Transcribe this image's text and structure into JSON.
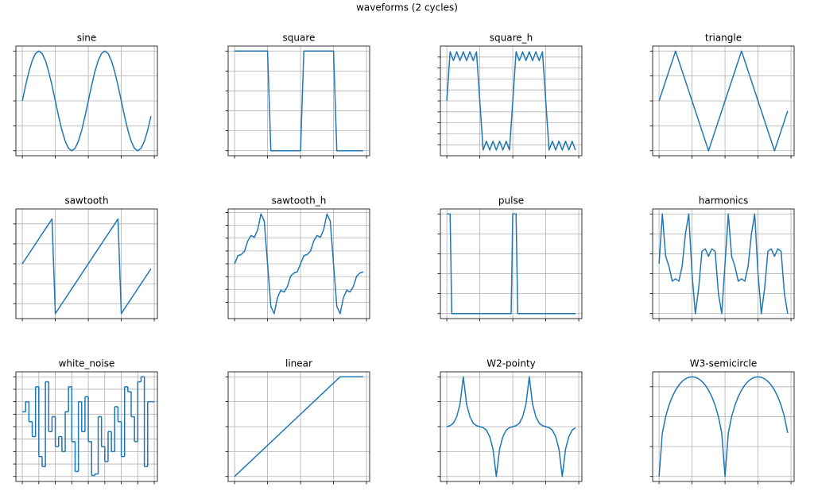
{
  "title": "waveforms (2 cycles)",
  "chart_data": [
    {
      "type": "line",
      "title": "sine",
      "color": "#1f77b4",
      "grid": true,
      "x": [
        0,
        0.05,
        0.1,
        0.15,
        0.2,
        0.25,
        0.3,
        0.35,
        0.4,
        0.45,
        0.5,
        0.55,
        0.6,
        0.65,
        0.7,
        0.75,
        0.8,
        0.85,
        0.9,
        0.95,
        1,
        1.05,
        1.1,
        1.15,
        1.2,
        1.25,
        1.3,
        1.35,
        1.4,
        1.45,
        1.5,
        1.55,
        1.6,
        1.65,
        1.7,
        1.75,
        1.8,
        1.85,
        1.9,
        1.95
      ],
      "values": [
        0,
        0.309,
        0.588,
        0.809,
        0.951,
        1,
        0.951,
        0.809,
        0.588,
        0.309,
        0,
        -0.309,
        -0.588,
        -0.809,
        -0.951,
        -1,
        -0.951,
        -0.809,
        -0.588,
        -0.309,
        0,
        0.309,
        0.588,
        0.809,
        0.951,
        1,
        0.951,
        0.809,
        0.588,
        0.309,
        0,
        -0.309,
        -0.588,
        -0.809,
        -0.951,
        -1,
        -0.951,
        -0.809,
        -0.588,
        -0.309
      ],
      "xlim": [
        -0.0975,
        2.0475
      ],
      "ylim": [
        -1.1,
        1.1
      ],
      "xticks": [
        0,
        0.5,
        1,
        1.5,
        2
      ],
      "yticks": [
        -1,
        -0.5,
        0,
        0.5,
        1
      ]
    },
    {
      "type": "line",
      "title": "square",
      "color": "#1f77b4",
      "grid": true,
      "x": [
        0,
        0.5,
        0.55,
        1,
        1.05,
        1.5,
        1.55,
        1.95
      ],
      "values": [
        1,
        1,
        -1,
        -1,
        1,
        1,
        -1,
        -1
      ],
      "xlim": [
        -0.0975,
        2.0475
      ],
      "ylim": [
        -1.1,
        1.1
      ],
      "xticks": [
        0,
        0.5,
        1,
        1.5,
        2
      ],
      "yticks": [
        -1,
        -0.6,
        -0.2,
        0.2,
        0.6,
        1
      ]
    },
    {
      "type": "line",
      "title": "square_h",
      "color": "#1f77b4",
      "grid": true,
      "x": [
        0,
        0.05,
        0.1,
        0.15,
        0.2,
        0.25,
        0.3,
        0.35,
        0.4,
        0.45,
        0.5,
        0.55,
        0.6,
        0.65,
        0.7,
        0.75,
        0.8,
        0.85,
        0.9,
        0.95,
        1,
        1.05,
        1.1,
        1.15,
        1.2,
        1.25,
        1.3,
        1.35,
        1.4,
        1.45,
        1.5,
        1.55,
        1.6,
        1.65,
        1.7,
        1.75,
        1.8,
        1.85,
        1.9,
        1.95
      ],
      "values": [
        0,
        1.12,
        0.92,
        1.12,
        0.92,
        1.12,
        0.92,
        1.12,
        0.92,
        1.12,
        0,
        -1.12,
        -0.92,
        -1.12,
        -0.92,
        -1.12,
        -0.92,
        -1.12,
        -0.92,
        -1.12,
        0,
        1.12,
        0.92,
        1.12,
        0.92,
        1.12,
        0.92,
        1.12,
        0.92,
        1.12,
        0,
        -1.12,
        -0.92,
        -1.12,
        -0.92,
        -1.12,
        -0.92,
        -1.12,
        -0.92,
        -1.12
      ],
      "xlim": [
        -0.0975,
        2.0475
      ],
      "ylim": [
        -1.25,
        1.25
      ],
      "xticks": [
        0,
        0.5,
        1,
        1.5,
        2
      ],
      "yticks": [
        -1,
        -0.75,
        -0.5,
        -0.25,
        0,
        0.25,
        0.5,
        0.75,
        1
      ]
    },
    {
      "type": "line",
      "title": "triangle",
      "color": "#1f77b4",
      "grid": true,
      "x": [
        0,
        0.25,
        0.75,
        1.25,
        1.75,
        1.95
      ],
      "values": [
        0,
        1,
        -1,
        1,
        -1,
        -0.2
      ],
      "xlim": [
        -0.0975,
        2.0475
      ],
      "ylim": [
        -1.1,
        1.1
      ],
      "xticks": [
        0,
        0.5,
        1,
        1.5,
        2
      ],
      "yticks": [
        -1,
        -0.5,
        0,
        0.5,
        1
      ]
    },
    {
      "type": "line",
      "title": "sawtooth",
      "color": "#1f77b4",
      "grid": true,
      "x": [
        0,
        0.45,
        0.5,
        1.45,
        1.5,
        1.95
      ],
      "values": [
        0,
        0.9,
        -1,
        0.9,
        -1,
        -0.1
      ],
      "xlim": [
        -0.0975,
        2.0475
      ],
      "ylim": [
        -1.1,
        1.1
      ],
      "xticks": [
        0,
        0.5,
        1,
        1.5,
        2
      ],
      "yticks": [
        -0.8,
        -0.4,
        0,
        0.4,
        0.8
      ]
    },
    {
      "type": "line",
      "title": "sawtooth_h",
      "color": "#1f77b4",
      "grid": true,
      "x": [
        0,
        0.05,
        0.1,
        0.15,
        0.2,
        0.25,
        0.3,
        0.35,
        0.4,
        0.45,
        0.5,
        0.55,
        0.6,
        0.65,
        0.7,
        0.75,
        0.8,
        0.85,
        0.9,
        0.95,
        1,
        1.05,
        1.1,
        1.15,
        1.2,
        1.25,
        1.3,
        1.35,
        1.4,
        1.45,
        1.5,
        1.55,
        1.6,
        1.65,
        1.7,
        1.75,
        1.8,
        1.85,
        1.9,
        1.95
      ],
      "values": [
        0,
        0.157,
        0.18,
        0.244,
        0.445,
        0.552,
        0.517,
        0.663,
        0.973,
        0.835,
        0,
        -0.835,
        -0.973,
        -0.663,
        -0.517,
        -0.552,
        -0.445,
        -0.244,
        -0.18,
        -0.157,
        0,
        0.157,
        0.18,
        0.244,
        0.445,
        0.552,
        0.517,
        0.663,
        0.973,
        0.835,
        0,
        -0.835,
        -0.973,
        -0.663,
        -0.517,
        -0.552,
        -0.445,
        -0.244,
        -0.18,
        -0.157
      ],
      "xlim": [
        -0.0975,
        2.0475
      ],
      "ylim": [
        -1.07,
        1.07
      ],
      "xticks": [
        0,
        0.5,
        1,
        1.5,
        2
      ],
      "yticks": [
        -0.75,
        -0.5,
        -0.25,
        0,
        0.25,
        0.5,
        0.75,
        1
      ]
    },
    {
      "type": "line",
      "title": "pulse",
      "color": "#1f77b4",
      "grid": true,
      "x": [
        0,
        0.05,
        0.075,
        0.975,
        1,
        1.05,
        1.075,
        1.95
      ],
      "values": [
        1,
        1,
        0,
        0,
        1,
        1,
        0,
        0
      ],
      "xlim": [
        -0.0975,
        2.0475
      ],
      "ylim": [
        -0.05,
        1.05
      ],
      "xticks": [
        0,
        0.5,
        1,
        1.5,
        2
      ],
      "yticks": [
        0,
        0.2,
        0.4,
        0.6,
        0.8,
        1
      ]
    },
    {
      "type": "line",
      "title": "harmonics",
      "color": "#1f77b4",
      "grid": true,
      "x": [
        0,
        0.05,
        0.1,
        0.15,
        0.2,
        0.25,
        0.3,
        0.35,
        0.4,
        0.45,
        0.5,
        0.55,
        0.6,
        0.65,
        0.7,
        0.75,
        0.8,
        0.85,
        0.9,
        0.95,
        1,
        1.05,
        1.1,
        1.15,
        1.2,
        1.25,
        1.3,
        1.35,
        1.4,
        1.45,
        1.5,
        1.55,
        1.6,
        1.65,
        1.7,
        1.75,
        1.8,
        1.85,
        1.9,
        1.95
      ],
      "values": [
        0,
        1,
        0.15,
        -0.05,
        -0.35,
        -0.3,
        -0.35,
        -0.05,
        0.6,
        1,
        -0.2,
        -1,
        -0.5,
        0.25,
        0.3,
        0.15,
        0.3,
        0.25,
        -0.6,
        -1,
        0,
        1,
        0.15,
        -0.05,
        -0.35,
        -0.3,
        -0.35,
        -0.05,
        0.6,
        1,
        -0.2,
        -1,
        -0.5,
        0.25,
        0.3,
        0.15,
        0.3,
        0.25,
        -0.6,
        -1
      ],
      "xlim": [
        -0.0975,
        2.0475
      ],
      "ylim": [
        -1.1,
        1.1
      ],
      "xticks": [
        0,
        0.5,
        1,
        1.5,
        2
      ],
      "yticks": [
        -1,
        -0.6,
        -0.2,
        0.2,
        0.6,
        1
      ]
    },
    {
      "type": "line",
      "title": "white_noise",
      "color": "#1f77b4",
      "grid": true,
      "drawstyle": "steps",
      "x": [
        0,
        0.05,
        0.1,
        0.15,
        0.2,
        0.25,
        0.3,
        0.35,
        0.4,
        0.45,
        0.5,
        0.55,
        0.6,
        0.65,
        0.7,
        0.75,
        0.8,
        0.85,
        0.9,
        0.95,
        1,
        1.05,
        1.1,
        1.15,
        1.2,
        1.25,
        1.3,
        1.35,
        1.4,
        1.45,
        1.5,
        1.55,
        1.6,
        1.65,
        1.7,
        1.75,
        1.8,
        1.85,
        1.9,
        1.95
      ],
      "values": [
        0.3,
        0.5,
        0.1,
        -0.2,
        0.8,
        -0.6,
        -0.8,
        0.9,
        -0.1,
        0.2,
        -0.4,
        -0.2,
        -0.5,
        0.3,
        0.8,
        -0.3,
        -0.9,
        0.5,
        -0.1,
        0.6,
        -0.3,
        -0.98,
        -0.95,
        0.2,
        -0.4,
        -0.7,
        -0.1,
        -0.5,
        0.4,
        0.1,
        -0.6,
        0.8,
        0.7,
        0.2,
        -0.3,
        0.9,
        1,
        -0.8,
        0.5,
        0.5
      ],
      "xlim": [
        -0.0975,
        2.0475
      ],
      "ylim": [
        -1.1,
        1.1
      ],
      "xticks": [
        0,
        0.25,
        0.5,
        0.75,
        1,
        1.25,
        1.5,
        1.75,
        2
      ],
      "yticks": [
        -1,
        -0.75,
        -0.5,
        -0.25,
        0,
        0.25,
        0.5,
        0.75,
        1
      ]
    },
    {
      "type": "line",
      "title": "linear",
      "color": "#1f77b4",
      "grid": true,
      "x": [
        0,
        1.6,
        1.95
      ],
      "values": [
        0,
        1,
        1
      ],
      "xlim": [
        -0.0975,
        2.0475
      ],
      "ylim": [
        -0.05,
        1.05
      ],
      "xticks": [
        0,
        0.5,
        1,
        1.5,
        2
      ],
      "yticks": [
        0,
        0.25,
        0.5,
        0.75,
        1
      ]
    },
    {
      "type": "line",
      "title": "W2-pointy",
      "color": "#1f77b4",
      "grid": true,
      "x": [
        0,
        0.05,
        0.1,
        0.15,
        0.2,
        0.25,
        0.3,
        0.35,
        0.4,
        0.45,
        0.5,
        0.55,
        0.6,
        0.65,
        0.7,
        0.75,
        0.8,
        0.85,
        0.9,
        0.95,
        1,
        1.05,
        1.1,
        1.15,
        1.2,
        1.25,
        1.3,
        1.35,
        1.4,
        1.45,
        1.5,
        1.55,
        1.6,
        1.65,
        1.7,
        1.75,
        1.8,
        1.85,
        1.9,
        1.95
      ],
      "values": [
        0,
        0.02,
        0.07,
        0.2,
        0.45,
        1,
        0.45,
        0.2,
        0.07,
        0.02,
        0,
        -0.02,
        -0.07,
        -0.2,
        -0.45,
        -1,
        -0.45,
        -0.2,
        -0.07,
        -0.02,
        0,
        0.02,
        0.07,
        0.2,
        0.45,
        1,
        0.45,
        0.2,
        0.07,
        0.02,
        0,
        -0.02,
        -0.07,
        -0.2,
        -0.45,
        -1,
        -0.45,
        -0.2,
        -0.07,
        -0.02
      ],
      "xlim": [
        -0.0975,
        2.0475
      ],
      "ylim": [
        -1.1,
        1.1
      ],
      "xticks": [
        0,
        0.5,
        1,
        1.5,
        2
      ],
      "yticks": [
        -1,
        -0.5,
        0,
        0.5,
        1
      ]
    },
    {
      "type": "line",
      "title": "W3-semicircle",
      "color": "#1f77b4",
      "grid": true,
      "x": [
        0,
        0.05,
        0.1,
        0.15,
        0.2,
        0.25,
        0.3,
        0.35,
        0.4,
        0.45,
        0.5,
        0.55,
        0.6,
        0.65,
        0.7,
        0.75,
        0.8,
        0.85,
        0.9,
        0.95,
        1,
        1.05,
        1.1,
        1.15,
        1.2,
        1.25,
        1.3,
        1.35,
        1.4,
        1.45,
        1.5,
        1.55,
        1.6,
        1.65,
        1.7,
        1.75,
        1.8,
        1.85,
        1.9,
        1.95
      ],
      "values": [
        0,
        0.436,
        0.6,
        0.714,
        0.8,
        0.866,
        0.917,
        0.954,
        0.98,
        0.995,
        1,
        0.995,
        0.98,
        0.954,
        0.917,
        0.866,
        0.8,
        0.714,
        0.6,
        0.436,
        0,
        0.436,
        0.6,
        0.714,
        0.8,
        0.866,
        0.917,
        0.954,
        0.98,
        0.995,
        1,
        0.995,
        0.98,
        0.954,
        0.917,
        0.866,
        0.8,
        0.714,
        0.6,
        0.436
      ],
      "xlim": [
        -0.0975,
        2.0475
      ],
      "ylim": [
        -0.05,
        1.05
      ],
      "xticks": [
        0,
        0.5,
        1,
        1.5,
        2
      ],
      "yticks": [
        0,
        0.3,
        0.6,
        0.9
      ]
    }
  ]
}
